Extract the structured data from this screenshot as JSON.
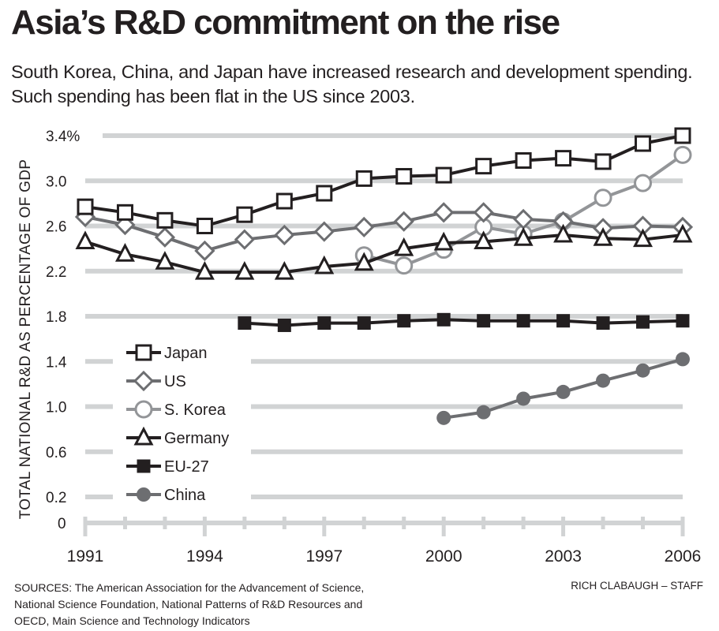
{
  "header": {
    "title": "Asia’s R&D commitment on the rise",
    "subtitle": "South Korea, China, and Japan have increased research and development spending. Such spending has been flat in the US since 2003."
  },
  "footer": {
    "sources_lines": [
      "SOURCES: The American Association for the Advancement of Science,",
      "National Science Foundation, National Patterns of R&D Resources and",
      "OECD, Main Science and Technology Indicators"
    ],
    "credit": "RICH CLABAUGH – STAFF"
  },
  "chart_data": {
    "type": "line",
    "title": "Asia’s R&D commitment on the rise",
    "xlabel": "",
    "ylabel": "TOTAL NATIONAL R&D AS PERCENTAGE OF GDP",
    "x": [
      1991,
      1992,
      1993,
      1994,
      1995,
      1996,
      1997,
      1998,
      1999,
      2000,
      2001,
      2002,
      2003,
      2004,
      2005,
      2006
    ],
    "xticks": [
      1991,
      1994,
      1997,
      2000,
      2003,
      2006
    ],
    "xtick_labels": [
      "1991",
      "1994",
      "1997",
      "2000",
      "2003",
      "2006"
    ],
    "yticks": [
      0,
      0.2,
      0.6,
      1.0,
      1.4,
      1.8,
      2.2,
      2.6,
      3.0,
      3.4
    ],
    "ytick_labels": [
      "0",
      "0.2",
      "0.6",
      "1.0",
      "1.4",
      "1.8",
      "2.2",
      "2.6",
      "3.0",
      "3.4%"
    ],
    "ylim": [
      0,
      3.4
    ],
    "y_axis_break": "between 0 and 0.2",
    "grid": true,
    "legend_position": "center-left",
    "series": [
      {
        "name": "Japan",
        "marker": "square-open",
        "color": "#231f20",
        "values": [
          2.77,
          2.72,
          2.65,
          2.6,
          2.7,
          2.82,
          2.89,
          3.02,
          3.04,
          3.05,
          3.13,
          3.18,
          3.2,
          3.17,
          3.33,
          3.4
        ]
      },
      {
        "name": "US",
        "marker": "diamond-open",
        "color": "#6d6e71",
        "values": [
          2.68,
          2.61,
          2.5,
          2.38,
          2.48,
          2.52,
          2.55,
          2.59,
          2.64,
          2.72,
          2.72,
          2.66,
          2.64,
          2.58,
          2.6,
          2.59
        ]
      },
      {
        "name": "S. Korea",
        "marker": "circle-open",
        "color": "#939598",
        "values": [
          null,
          null,
          null,
          null,
          null,
          null,
          null,
          2.34,
          2.25,
          2.39,
          2.59,
          2.53,
          2.64,
          2.85,
          2.98,
          3.23
        ]
      },
      {
        "name": "Germany",
        "marker": "triangle-open",
        "color": "#231f20",
        "values": [
          2.46,
          2.35,
          2.28,
          2.19,
          2.19,
          2.19,
          2.24,
          2.27,
          2.4,
          2.45,
          2.46,
          2.49,
          2.52,
          2.49,
          2.48,
          2.52
        ]
      },
      {
        "name": "EU-27",
        "marker": "square-filled",
        "color": "#231f20",
        "values": [
          null,
          null,
          null,
          null,
          1.74,
          1.72,
          1.74,
          1.74,
          1.76,
          1.77,
          1.76,
          1.76,
          1.76,
          1.74,
          1.75,
          1.76
        ]
      },
      {
        "name": "China",
        "marker": "circle-filled",
        "color": "#6d6e71",
        "values": [
          null,
          null,
          null,
          null,
          null,
          null,
          null,
          null,
          null,
          0.9,
          0.95,
          1.07,
          1.13,
          1.23,
          1.32,
          1.42
        ]
      }
    ]
  }
}
